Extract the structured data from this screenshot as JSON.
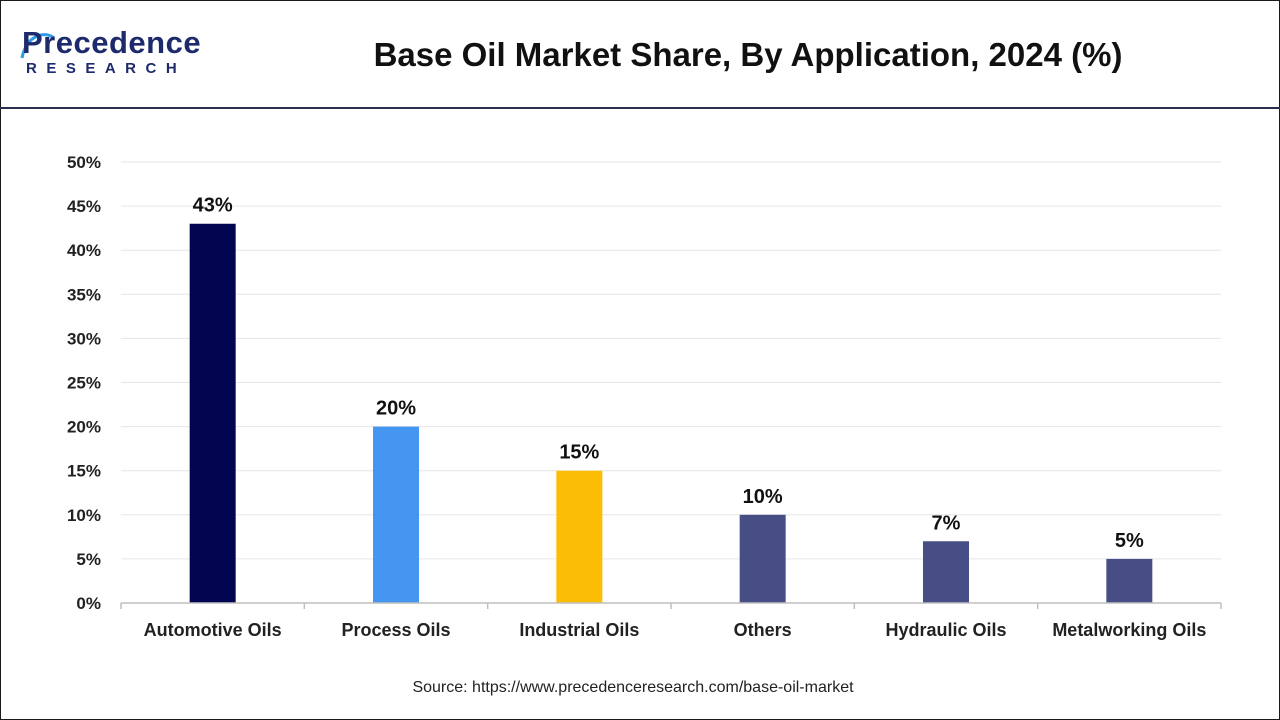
{
  "brand": {
    "logo_main": "Precedence",
    "logo_sub": "RESEARCH"
  },
  "title": "Base Oil Market Share, By Application, 2024 (%)",
  "source": "Source: https://www.precedenceresearch.com/base-oil-market",
  "chart_data": {
    "type": "bar",
    "title": "Base Oil Market Share, By Application, 2024 (%)",
    "xlabel": "",
    "ylabel": "",
    "categories": [
      "Automotive Oils",
      "Process Oils",
      "Industrial Oils",
      "Others",
      "Hydraulic Oils",
      "Metalworking Oils"
    ],
    "values": [
      43,
      20,
      15,
      10,
      7,
      5
    ],
    "value_labels": [
      "43%",
      "20%",
      "15%",
      "10%",
      "7%",
      "5%"
    ],
    "colors": [
      "#020550",
      "#4496f0",
      "#fcbe05",
      "#474e86",
      "#474e86",
      "#474e86"
    ],
    "ylim": [
      0,
      50
    ],
    "yticks": [
      0,
      5,
      10,
      15,
      20,
      25,
      30,
      35,
      40,
      45,
      50
    ],
    "ytick_labels": [
      "0%",
      "5%",
      "10%",
      "15%",
      "20%",
      "25%",
      "30%",
      "35%",
      "40%",
      "45%",
      "50%"
    ],
    "grid": true,
    "legend": "none"
  }
}
